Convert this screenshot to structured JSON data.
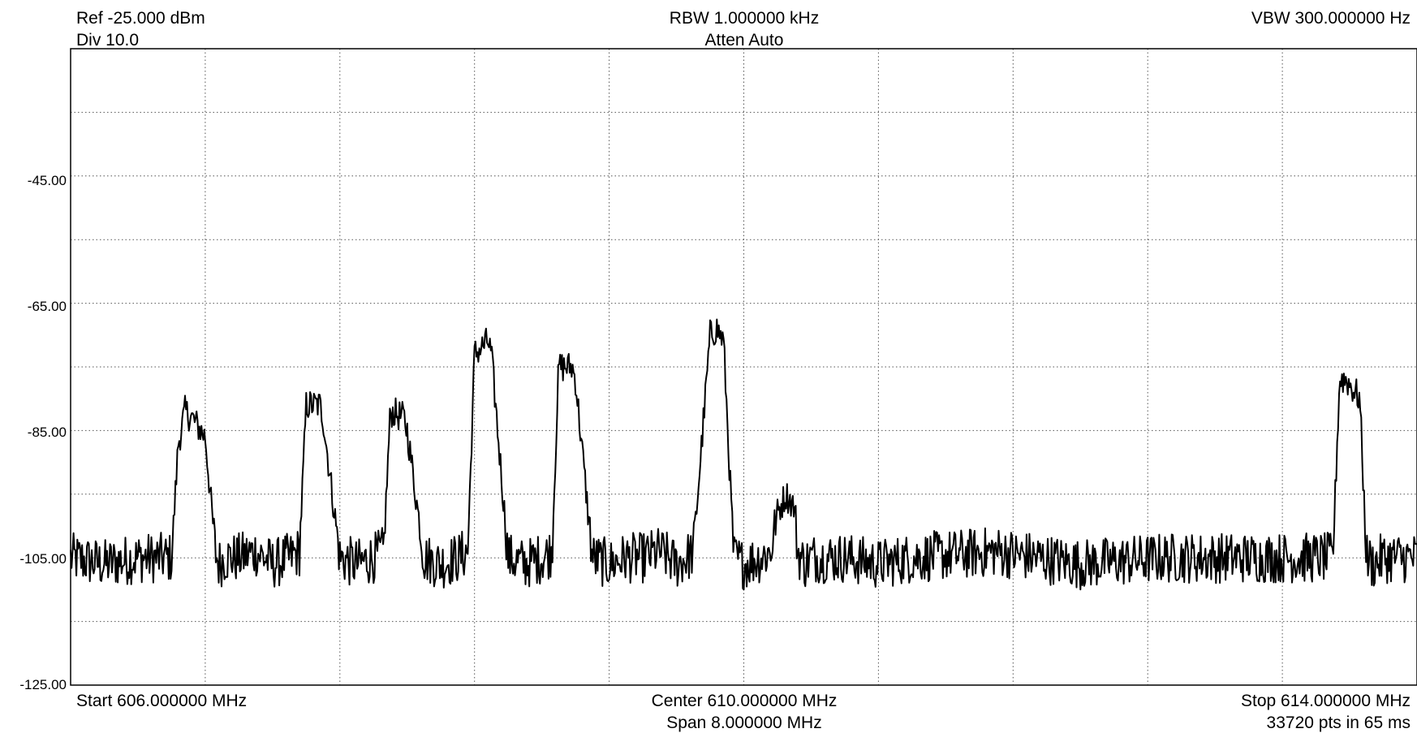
{
  "header": {
    "ref": "Ref -25.000 dBm",
    "div": "Div 10.0",
    "rbw": "RBW 1.000000 kHz",
    "atten": "Atten Auto",
    "vbw": "VBW 300.000000 Hz"
  },
  "footer": {
    "start": "Start 606.000000 MHz",
    "center": "Center 610.000000 MHz",
    "span": "Span 8.000000 MHz",
    "stop": "Stop 614.000000 MHz",
    "points": "33720 pts in 65 ms"
  },
  "chart_data": {
    "type": "line",
    "title": "",
    "xlabel": "",
    "ylabel": "",
    "x_unit": "MHz",
    "y_unit": "dBm",
    "xlim": [
      606.0,
      614.0
    ],
    "ylim": [
      -125.0,
      -25.0
    ],
    "grid": true,
    "y_ticks": [
      -45,
      -65,
      -85,
      -105,
      -125
    ],
    "y_tick_labels": [
      "-45.00",
      "-65.00",
      "-85.00",
      "-105.00",
      "-125.00"
    ],
    "noise_floor_dbm": -105.0,
    "series": [
      {
        "values_x": [
          606.0,
          606.2,
          606.4,
          606.6,
          606.64,
          606.68,
          606.72,
          606.8,
          606.86,
          606.88,
          606.92,
          607.0,
          607.1,
          607.2,
          607.3,
          607.36,
          607.4,
          607.48,
          607.5,
          607.6,
          607.7,
          607.8,
          607.86,
          607.9,
          607.98,
          608.0,
          608.1,
          608.2,
          608.3,
          608.36,
          608.4,
          608.48,
          608.5,
          608.6,
          608.7,
          608.8,
          608.86,
          608.9,
          608.98,
          609.0,
          609.1,
          609.2,
          609.3,
          609.4,
          609.5,
          609.6,
          609.66,
          609.7,
          609.8,
          609.84,
          609.88,
          609.94,
          610.0,
          610.1,
          610.16,
          610.2,
          610.25,
          610.3,
          610.32,
          610.36,
          610.4,
          610.6,
          610.8,
          611.0,
          611.5,
          612.0,
          612.5,
          613.0,
          613.4,
          613.5,
          613.54,
          613.58,
          613.66,
          613.7,
          613.74,
          613.8,
          613.9,
          614.0
        ],
        "values_y": [
          -105,
          -106,
          -105,
          -105,
          -87,
          -82,
          -83,
          -86,
          -104,
          -106,
          -105,
          -105,
          -104,
          -106,
          -105,
          -104,
          -81,
          -81,
          -83,
          -105,
          -106,
          -105,
          -104,
          -82,
          -83,
          -85,
          -105,
          -106,
          -105,
          -104,
          -73,
          -71,
          -73,
          -105,
          -106,
          -105,
          -104,
          -75,
          -75,
          -77,
          -105,
          -106,
          -105,
          -105,
          -104,
          -106,
          -105,
          -104,
          -70,
          -69,
          -71,
          -105,
          -106,
          -105,
          -104,
          -98,
          -95,
          -97,
          -104,
          -106,
          -105,
          -105,
          -106,
          -105,
          -104,
          -106,
          -105,
          -105,
          -105,
          -105,
          -77,
          -77,
          -80,
          -105,
          -106,
          -105,
          -105,
          -105
        ]
      }
    ]
  }
}
